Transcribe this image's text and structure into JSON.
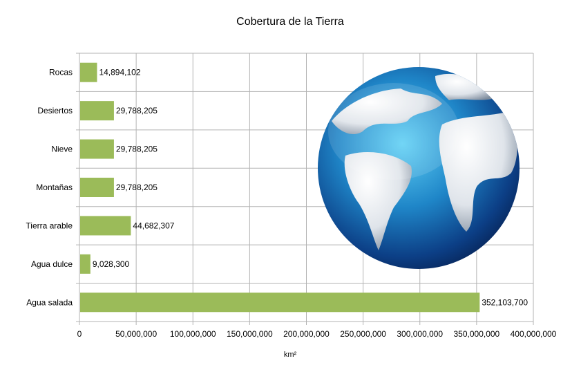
{
  "chart_data": {
    "type": "bar",
    "orientation": "horizontal",
    "title": "Cobertura de la Tierra",
    "xlabel": "km²",
    "ylabel": "",
    "categories": [
      "Rocas",
      "Desiertos",
      "Nieve",
      "Montañas",
      "Tierra arable",
      "Agua dulce",
      "Agua salada"
    ],
    "values": [
      14894102,
      29788205,
      29788205,
      29788205,
      44682307,
      9028300,
      352103700
    ],
    "data_labels": [
      "14,894,102",
      "29,788,205",
      "29,788,205",
      "29,788,205",
      "44,682,307",
      "9,028,300",
      "352,103,700"
    ],
    "xlim": [
      0,
      400000000
    ],
    "xticks": [
      "0",
      "50,000,000",
      "100,000,000",
      "150,000,000",
      "200,000,000",
      "250,000,000",
      "300,000,000",
      "350,000,000",
      "400,000,000"
    ],
    "grid": true,
    "legend": "none",
    "bar_color": "#9bbb59",
    "decoration": "globe-image"
  }
}
